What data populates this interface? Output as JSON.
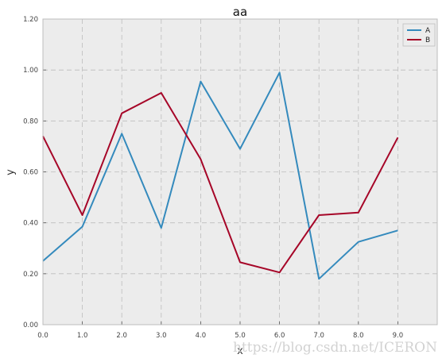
{
  "chart_data": {
    "type": "line",
    "title": "aa",
    "xlabel": "x",
    "ylabel": "y",
    "x": [
      0,
      1,
      2,
      3,
      4,
      5,
      6,
      7,
      8,
      9
    ],
    "xlim": [
      0,
      10
    ],
    "ylim": [
      0,
      1.2
    ],
    "xticks": [
      0,
      1,
      2,
      3,
      4,
      5,
      6,
      7,
      8,
      9
    ],
    "xtick_labels": [
      "0.0",
      "1.0",
      "2.0",
      "3.0",
      "4.0",
      "5.0",
      "6.0",
      "7.0",
      "8.0",
      "9.0"
    ],
    "yticks": [
      0,
      0.2,
      0.4,
      0.6,
      0.8,
      1.0,
      1.2
    ],
    "ytick_labels": [
      "0.00",
      "0.20",
      "0.40",
      "0.60",
      "0.80",
      "1.00",
      "1.20"
    ],
    "grid": true,
    "legend_position": "top-right",
    "background_color": "#ececec",
    "series": [
      {
        "name": "A",
        "color": "#348abd",
        "values": [
          0.25,
          0.385,
          0.75,
          0.38,
          0.955,
          0.69,
          0.99,
          0.18,
          0.325,
          0.37
        ]
      },
      {
        "name": "B",
        "color": "#a60628",
        "values": [
          0.74,
          0.43,
          0.83,
          0.91,
          0.65,
          0.245,
          0.205,
          0.43,
          0.44,
          0.735
        ]
      }
    ]
  },
  "watermark": "https://blog.csdn.net/ICERON"
}
